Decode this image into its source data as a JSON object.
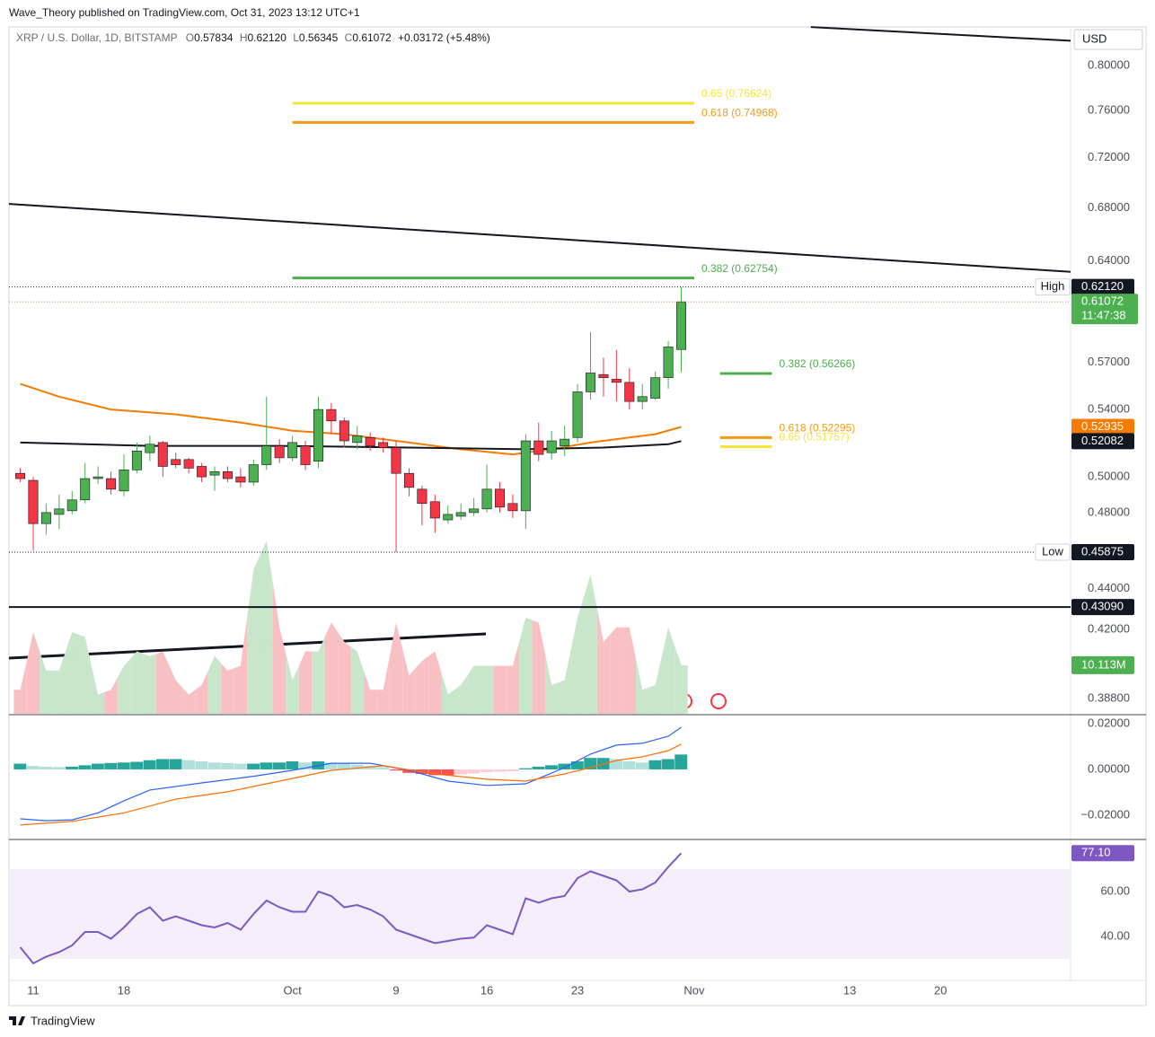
{
  "header": {
    "publisher": "Wave_Theory published on TradingView.com, Oct 31, 2023 13:12 UTC+1",
    "currency": "USD",
    "brand": "TradingView"
  },
  "chart_data": [
    {
      "type": "candlestick",
      "title": "XRP / U.S. Dollar, 1D, BITSTAMP",
      "ohlc_legend": [
        {
          "key": "O",
          "value": "0.57834"
        },
        {
          "key": "H",
          "value": "0.62120"
        },
        {
          "key": "L",
          "value": "0.56345"
        },
        {
          "key": "C",
          "value": "0.61072"
        }
      ],
      "change": "+0.03172 (+5.48%)",
      "x": [
        10,
        11,
        12,
        13,
        14,
        15,
        16,
        17,
        18,
        19,
        20,
        21,
        22,
        23,
        24,
        25,
        26,
        27,
        28,
        29,
        30,
        31,
        32,
        33,
        34,
        35,
        36,
        37,
        38,
        39,
        40,
        41,
        42,
        43,
        44,
        45,
        46,
        47,
        48,
        49,
        50,
        51,
        52,
        53,
        54,
        55,
        56,
        57,
        58,
        59,
        60,
        61
      ],
      "open": [
        0.502,
        0.498,
        0.474,
        0.479,
        0.481,
        0.487,
        0.499,
        0.499,
        0.492,
        0.504,
        0.514,
        0.52,
        0.51,
        0.51,
        0.506,
        0.501,
        0.503,
        0.5,
        0.497,
        0.507,
        0.518,
        0.511,
        0.518,
        0.509,
        0.54,
        0.533,
        0.52,
        0.523,
        0.52,
        0.517,
        0.502,
        0.493,
        0.486,
        0.476,
        0.478,
        0.48,
        0.482,
        0.493,
        0.485,
        0.481,
        0.521,
        0.514,
        0.518,
        0.523,
        0.551,
        0.562,
        0.559,
        0.557,
        0.545,
        0.547,
        0.56,
        0.57834
      ],
      "high": [
        0.505,
        0.5,
        0.485,
        0.49,
        0.492,
        0.508,
        0.506,
        0.503,
        0.513,
        0.52,
        0.524,
        0.521,
        0.514,
        0.511,
        0.508,
        0.506,
        0.506,
        0.505,
        0.51,
        0.548,
        0.522,
        0.524,
        0.521,
        0.548,
        0.544,
        0.535,
        0.53,
        0.526,
        0.523,
        0.521,
        0.505,
        0.495,
        0.49,
        0.484,
        0.485,
        0.488,
        0.507,
        0.497,
        0.49,
        0.525,
        0.532,
        0.527,
        0.53,
        0.556,
        0.59,
        0.573,
        0.578,
        0.566,
        0.556,
        0.564,
        0.584,
        0.6212
      ],
      "low": [
        0.497,
        0.4595,
        0.468,
        0.471,
        0.479,
        0.485,
        0.496,
        0.49,
        0.489,
        0.502,
        0.509,
        0.5,
        0.505,
        0.502,
        0.497,
        0.492,
        0.497,
        0.494,
        0.495,
        0.504,
        0.508,
        0.509,
        0.504,
        0.505,
        0.525,
        0.517,
        0.516,
        0.515,
        0.514,
        0.45875,
        0.489,
        0.473,
        0.469,
        0.474,
        0.476,
        0.478,
        0.48,
        0.48,
        0.477,
        0.471,
        0.509,
        0.51,
        0.512,
        0.52,
        0.546,
        0.548,
        0.545,
        0.54,
        0.54,
        0.546,
        0.553,
        0.56345
      ],
      "close": [
        0.499,
        0.474,
        0.48,
        0.482,
        0.487,
        0.499,
        0.5,
        0.493,
        0.504,
        0.515,
        0.519,
        0.506,
        0.507,
        0.505,
        0.5,
        0.503,
        0.499,
        0.497,
        0.507,
        0.518,
        0.511,
        0.52,
        0.507,
        0.54,
        0.533,
        0.521,
        0.524,
        0.518,
        0.517,
        0.502,
        0.494,
        0.485,
        0.477,
        0.479,
        0.48,
        0.482,
        0.493,
        0.483,
        0.481,
        0.521,
        0.513,
        0.521,
        0.522,
        0.551,
        0.563,
        0.56,
        0.557,
        0.545,
        0.548,
        0.56,
        0.58,
        0.61072
      ],
      "up_color": "#4caf50",
      "down_color": "#f23645",
      "volume": {
        "values": [
          5,
          17,
          9,
          9,
          17,
          16,
          4,
          5,
          10,
          13,
          12,
          13,
          7,
          4,
          6,
          12,
          9,
          10,
          30,
          36,
          18,
          7,
          13,
          13,
          19,
          15,
          13,
          5,
          5,
          19,
          8,
          11,
          13,
          4,
          6,
          10,
          10,
          10,
          10,
          20,
          19,
          6,
          7,
          20,
          29,
          15,
          18,
          18,
          5,
          6,
          18,
          10.113
        ],
        "ylim": [
          0,
          40
        ],
        "up_color": "#c8e6c9",
        "down_color": "#f9c0c4",
        "tag_color": "#4caf50",
        "last_label": "10.113M"
      },
      "moving_averages": [
        {
          "color": "#f57c00",
          "x": [
            10,
            13,
            17,
            22,
            27,
            31,
            35,
            40,
            44,
            48,
            51,
            54,
            57,
            59,
            61
          ],
          "values": [
            0.556,
            0.548,
            0.54,
            0.537,
            0.532,
            0.527,
            0.525,
            0.52,
            0.516,
            0.513,
            0.516,
            0.52,
            0.523,
            0.525,
            0.52935
          ],
          "last_label": "0.52935"
        },
        {
          "color": "#131722",
          "x": [
            10,
            20,
            30,
            40,
            49,
            55,
            60,
            61
          ],
          "values": [
            0.52,
            0.518,
            0.518,
            0.517,
            0.516,
            0.517,
            0.519,
            0.52082
          ],
          "last_label": "0.52082"
        }
      ],
      "trendlines": [
        {
          "x": [
            9.13,
            91.04
          ],
          "values": [
            0.683,
            0.632
          ]
        },
        {
          "x": [
            71,
            91.04
          ],
          "values": [
            0.836,
            0.823
          ]
        }
      ],
      "horizontal_lines": [
        {
          "value": 0.4309,
          "label": "0.43090"
        }
      ],
      "fib_levels": [
        {
          "label": "0.65 (0.76624)",
          "value": 0.76624,
          "color": "#f5e53a",
          "x": [
            31,
            62
          ]
        },
        {
          "label": "0.618 (0.74968)",
          "value": 0.74968,
          "color": "#f39c12",
          "x": [
            31,
            62
          ]
        },
        {
          "label": "0.382 (0.62754)",
          "value": 0.62754,
          "color": "#4caf50",
          "x": [
            31,
            62
          ]
        },
        {
          "label": "0.382 (0.56266)",
          "value": 0.56266,
          "color": "#4caf50",
          "x": [
            64,
            68
          ]
        },
        {
          "label": "0.618 (0.52295)",
          "value": 0.52295,
          "color": "#f39c12",
          "x": [
            64,
            68
          ]
        },
        {
          "label": "0.65 (0.51757)",
          "value": 0.51757,
          "color": "#f5e53a",
          "x": [
            64,
            68
          ]
        }
      ],
      "markers": [
        {
          "name": "High",
          "value": 0.6212,
          "label": "0.62120"
        },
        {
          "name": "Low",
          "value": 0.45875,
          "label": "0.45875"
        }
      ],
      "last_price": {
        "value": 0.61072,
        "label": "0.61072",
        "countdown": "11:47:38"
      },
      "xlim": [
        9.13,
        91.04
      ],
      "xticks": [
        11,
        18,
        {
          "value": 31,
          "label": "Oct"
        },
        {
          "value": 39,
          "label": "9"
        },
        {
          "value": 46,
          "label": "16"
        },
        {
          "value": 53,
          "label": "23"
        },
        {
          "value": 62,
          "label": "Nov"
        },
        {
          "value": 74,
          "label": "13"
        },
        {
          "value": 81,
          "label": "20"
        }
      ],
      "ylim": [
        0.3814,
        0.8361
      ],
      "log_scale": true,
      "yticks": [
        {
          "value": 0.388,
          "label": "0.38800"
        },
        {
          "value": 0.42,
          "label": "0.42000"
        },
        {
          "value": 0.44,
          "label": "0.44000"
        },
        {
          "value": 0.48,
          "label": "0.48000"
        },
        {
          "value": 0.5,
          "label": "0.50000"
        },
        {
          "value": 0.54,
          "label": "0.54000"
        },
        {
          "value": 0.57,
          "label": "0.57000"
        },
        {
          "value": 0.64,
          "label": "0.64000"
        },
        {
          "value": 0.68,
          "label": "0.68000"
        },
        {
          "value": 0.72,
          "label": "0.72000"
        },
        {
          "value": 0.76,
          "label": "0.76000"
        },
        {
          "value": 0.8,
          "label": "0.80000"
        }
      ]
    },
    {
      "type": "macd",
      "x": [
        10,
        11,
        12,
        13,
        14,
        15,
        16,
        17,
        18,
        19,
        20,
        21,
        22,
        23,
        24,
        25,
        26,
        27,
        28,
        29,
        30,
        31,
        32,
        33,
        34,
        35,
        36,
        37,
        38,
        39,
        40,
        41,
        42,
        43,
        44,
        45,
        46,
        47,
        48,
        49,
        50,
        51,
        52,
        53,
        54,
        55,
        56,
        57,
        58,
        59,
        60,
        61
      ],
      "histogram": [
        0.0025,
        0.0015,
        0.0012,
        0.001,
        0.0012,
        0.0018,
        0.0025,
        0.0028,
        0.003,
        0.0033,
        0.004,
        0.0045,
        0.0045,
        0.004,
        0.0035,
        0.003,
        0.0028,
        0.0025,
        0.0025,
        0.003,
        0.003,
        0.0035,
        0.003,
        0.0035,
        0.003,
        0.0025,
        0.002,
        0.0015,
        0.001,
        -0.0005,
        -0.0015,
        -0.002,
        -0.0025,
        -0.0025,
        -0.0022,
        -0.0018,
        -0.0012,
        -0.001,
        -0.0008,
        0.0005,
        0.0012,
        0.0018,
        0.0025,
        0.0035,
        0.005,
        0.005,
        0.0045,
        0.0035,
        0.003,
        0.004,
        0.0045,
        0.0065
      ],
      "histogram_colors": {
        "up_rising": "#26a69a",
        "up_falling": "#b2dfdb",
        "down_falling": "#ff5252",
        "down_rising": "#ffcdd2"
      },
      "macd": {
        "color": "#2962ff",
        "x": [
          10,
          12,
          14,
          16,
          18,
          20,
          24,
          28,
          31,
          34,
          37,
          40,
          43,
          46,
          49,
          52,
          54,
          56,
          58,
          60,
          61
        ],
        "values": [
          -0.0216,
          -0.0224,
          -0.022,
          -0.019,
          -0.0137,
          -0.009,
          -0.0059,
          -0.003,
          -0.0004,
          0.0027,
          0.0027,
          -0.0004,
          -0.0051,
          -0.007,
          -0.0063,
          0.0008,
          0.0067,
          0.0106,
          0.0114,
          0.0145,
          0.0184
        ]
      },
      "signal": {
        "color": "#ff6d00",
        "x": [
          10,
          14,
          18,
          22,
          26,
          30,
          34,
          38,
          42,
          46,
          49,
          52,
          54,
          56,
          58,
          60,
          61
        ],
        "values": [
          -0.0243,
          -0.0227,
          -0.019,
          -0.013,
          -0.0098,
          -0.0051,
          -0.0004,
          0.0016,
          -0.002,
          -0.0043,
          -0.0051,
          -0.002,
          0.0008,
          0.0039,
          0.0055,
          0.0082,
          0.011
        ]
      },
      "ylim": [
        -0.0306,
        0.0235
      ],
      "yticks": [
        {
          "value": -0.02,
          "label": "−0.02000"
        },
        {
          "value": 0,
          "label": "0.00000"
        },
        {
          "value": 0.02,
          "label": "0.02000"
        }
      ]
    },
    {
      "type": "line",
      "x": [
        10,
        11,
        12,
        13,
        14,
        15,
        16,
        17,
        18,
        19,
        20,
        21,
        22,
        23,
        24,
        25,
        26,
        27,
        28,
        29,
        30,
        31,
        32,
        33,
        34,
        35,
        36,
        37,
        38,
        39,
        40,
        41,
        42,
        43,
        44,
        45,
        46,
        47,
        48,
        49,
        50,
        51,
        52,
        53,
        54,
        55,
        56,
        57,
        58,
        59,
        60,
        61
      ],
      "values": [
        35.2,
        28,
        31,
        33,
        36,
        42,
        42,
        39,
        44,
        50,
        53,
        47,
        49,
        47,
        45,
        44,
        46,
        43,
        50,
        56,
        53,
        51,
        51,
        60,
        58,
        53,
        54,
        52,
        49,
        43,
        41,
        39,
        37,
        38,
        39,
        39.5,
        45,
        43,
        41,
        57,
        55,
        57,
        58,
        66,
        69,
        67,
        65,
        60,
        61,
        64,
        71,
        77.1
      ],
      "color": "#7e57c2",
      "band": [
        30,
        70
      ],
      "band_color": "#f3eefa",
      "value_label": "77.10",
      "ylim": [
        20.4,
        82.4
      ],
      "yticks": [
        {
          "value": 40,
          "label": "40.00"
        },
        {
          "value": 60,
          "label": "60.00"
        }
      ]
    }
  ]
}
